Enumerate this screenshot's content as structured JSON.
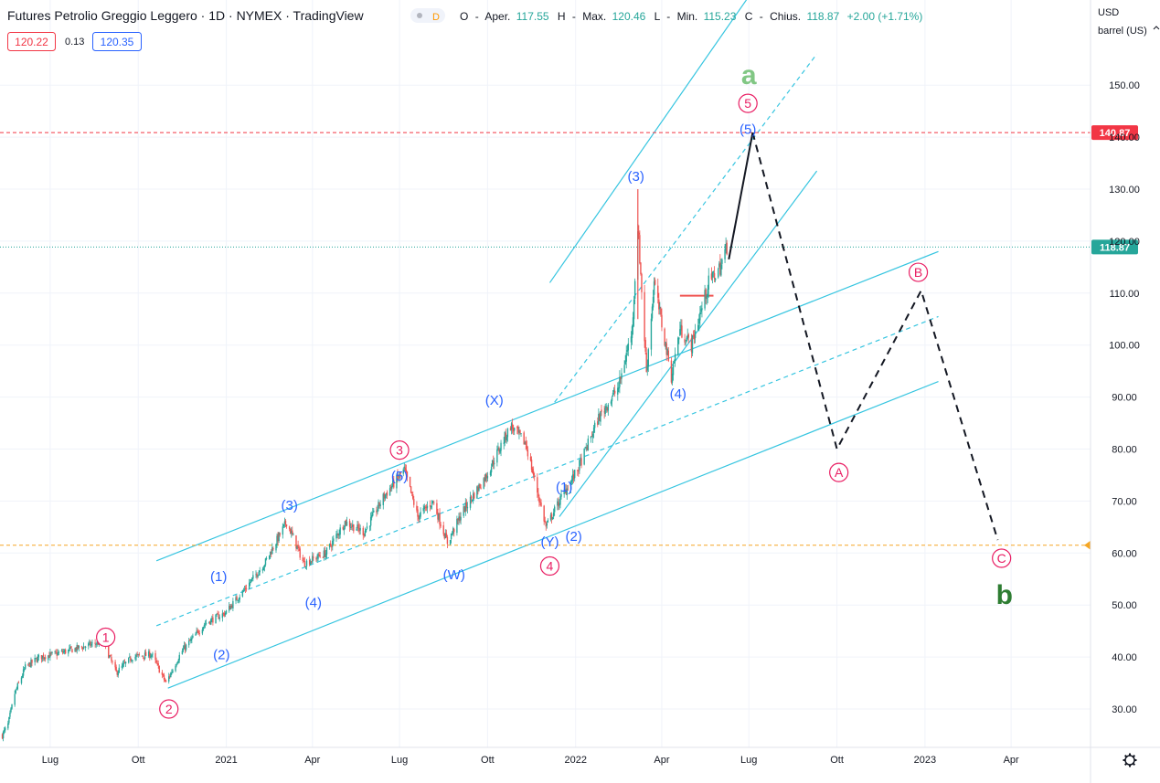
{
  "header": {
    "title": "Futures Petrolio Greggio Leggero · 1D · NYMEX · TradingView",
    "badge_d": "D",
    "o_label": "O",
    "apertura_label": "Aper.",
    "open": "117.55",
    "h_label": "H",
    "max_label": "Max.",
    "high": "120.46",
    "l_label": "L",
    "min_label": "Min.",
    "low": "115.23",
    "c_label": "C",
    "chiusura_label": "Chius.",
    "close": "118.87",
    "change": "+2.00 (+1.71%)",
    "bid": "120.22",
    "spread": "0.13",
    "ask": "120.35"
  },
  "axis": {
    "currency": "USD",
    "unit": "barrel (US)"
  },
  "colors": {
    "channel": "#36c5e0",
    "bull": "#26a69a",
    "bear": "#ef5350",
    "wave_primary": "#e91e63",
    "wave_blue": "#2962ff",
    "label_a": "#81c784",
    "label_b": "#2e7d32",
    "last_price": "#26a69a",
    "target_price": "#f23645",
    "support": "#f5a623"
  },
  "chart_data": {
    "type": "candlestick",
    "y_ticks": [
      30,
      40,
      50,
      60,
      70,
      80,
      90,
      100,
      110,
      120,
      130,
      140,
      150
    ],
    "y_tick_labels": [
      "30.00",
      "40.00",
      "50.00",
      "60.00",
      "70.00",
      "80.00",
      "90.00",
      "100.00",
      "110.00",
      "120.00",
      "130.00",
      "140.00",
      "150.00"
    ],
    "ylim": [
      22.5,
      159
    ],
    "xlim": [
      "2020-05-11",
      "2023-06-01"
    ],
    "x_ticks": [
      {
        "date": "2020-07-01",
        "label": "Lug"
      },
      {
        "date": "2020-10-01",
        "label": "Ott"
      },
      {
        "date": "2021-01-01",
        "label": "2021"
      },
      {
        "date": "2021-04-01",
        "label": "Apr"
      },
      {
        "date": "2021-07-01",
        "label": "Lug"
      },
      {
        "date": "2021-10-01",
        "label": "Ott"
      },
      {
        "date": "2022-01-01",
        "label": "2022"
      },
      {
        "date": "2022-04-01",
        "label": "Apr"
      },
      {
        "date": "2022-07-01",
        "label": "Lug"
      },
      {
        "date": "2022-10-01",
        "label": "Ott"
      },
      {
        "date": "2023-01-01",
        "label": "2023"
      },
      {
        "date": "2023-04-01",
        "label": "Apr"
      }
    ],
    "price_path": [
      [
        "2020-05-12",
        25
      ],
      [
        "2020-05-18",
        27
      ],
      [
        "2020-05-25",
        33
      ],
      [
        "2020-06-05",
        38
      ],
      [
        "2020-06-20",
        40
      ],
      [
        "2020-07-05",
        40.5
      ],
      [
        "2020-08-05",
        42
      ],
      [
        "2020-08-25",
        43
      ],
      [
        "2020-09-08",
        37
      ],
      [
        "2020-09-25",
        40
      ],
      [
        "2020-10-15",
        40.5
      ],
      [
        "2020-10-30",
        35
      ],
      [
        "2020-11-15",
        41
      ],
      [
        "2020-12-10",
        46.5
      ],
      [
        "2020-12-31",
        48.5
      ],
      [
        "2021-01-20",
        53
      ],
      [
        "2021-02-10",
        58
      ],
      [
        "2021-03-05",
        66
      ],
      [
        "2021-03-23",
        58
      ],
      [
        "2021-04-15",
        60
      ],
      [
        "2021-05-05",
        66
      ],
      [
        "2021-05-25",
        64
      ],
      [
        "2021-06-15",
        71
      ],
      [
        "2021-07-06",
        76
      ],
      [
        "2021-07-20",
        67
      ],
      [
        "2021-08-05",
        70
      ],
      [
        "2021-08-20",
        62
      ],
      [
        "2021-09-05",
        68
      ],
      [
        "2021-09-30",
        75
      ],
      [
        "2021-10-25",
        84.5
      ],
      [
        "2021-11-10",
        81
      ],
      [
        "2021-12-01",
        65
      ],
      [
        "2021-12-15",
        70
      ],
      [
        "2022-01-03",
        76
      ],
      [
        "2022-01-25",
        86
      ],
      [
        "2022-02-15",
        92
      ],
      [
        "2022-03-01",
        103
      ],
      [
        "2022-03-07",
        123
      ],
      [
        "2022-03-16",
        95
      ],
      [
        "2022-03-24",
        112
      ],
      [
        "2022-04-11",
        94
      ],
      [
        "2022-04-20",
        103
      ],
      [
        "2022-05-02",
        100
      ],
      [
        "2022-05-20",
        112
      ],
      [
        "2022-06-01",
        115
      ],
      [
        "2022-06-08",
        118.87
      ]
    ],
    "current_price": 118.87,
    "target_price": 140.87,
    "support_price": 61.5,
    "wave_a_high": 130,
    "wave_labels": [
      {
        "text": "1",
        "style": "circle-pink",
        "date": "2020-08-28",
        "price": 43.8
      },
      {
        "text": "2",
        "style": "circle-pink",
        "date": "2020-11-02",
        "price": 30.0
      },
      {
        "text": "3",
        "style": "circle-pink",
        "date": "2021-07-01",
        "price": 79.8
      },
      {
        "text": "4",
        "style": "circle-pink",
        "date": "2021-12-05",
        "price": 57.5
      },
      {
        "text": "5",
        "style": "circle-pink",
        "date": "2022-06-30",
        "price": 146.5
      },
      {
        "text": "(1)",
        "style": "paren-blue",
        "date": "2020-12-24",
        "price": 55.5
      },
      {
        "text": "(2)",
        "style": "paren-blue",
        "date": "2020-12-27",
        "price": 40.5
      },
      {
        "text": "(3)",
        "style": "paren-blue",
        "date": "2021-03-08",
        "price": 69.2
      },
      {
        "text": "(4)",
        "style": "paren-blue",
        "date": "2021-04-02",
        "price": 50.5
      },
      {
        "text": "(5)",
        "style": "paren-blue",
        "date": "2021-07-01",
        "price": 74.8
      },
      {
        "text": "(W)",
        "style": "paren-blue",
        "date": "2021-08-27",
        "price": 55.8
      },
      {
        "text": "(X)",
        "style": "paren-blue",
        "date": "2021-10-08",
        "price": 89.4
      },
      {
        "text": "(Y)",
        "style": "paren-blue",
        "date": "2021-12-05",
        "price": 62.2
      },
      {
        "text": "(1)",
        "style": "paren-blue",
        "date": "2021-12-20",
        "price": 72.7
      },
      {
        "text": "(2)",
        "style": "paren-blue",
        "date": "2021-12-30",
        "price": 63.2
      },
      {
        "text": "(3)",
        "style": "paren-blue",
        "date": "2022-03-05",
        "price": 132.5
      },
      {
        "text": "(4)",
        "style": "paren-blue",
        "date": "2022-04-18",
        "price": 90.6
      },
      {
        "text": "(5)",
        "style": "paren-blue",
        "date": "2022-06-30",
        "price": 141.5
      },
      {
        "text": "A",
        "style": "circle-pink",
        "date": "2022-10-03",
        "price": 75.5
      },
      {
        "text": "B",
        "style": "circle-pink",
        "date": "2022-12-25",
        "price": 114.0
      },
      {
        "text": "C",
        "style": "circle-pink",
        "date": "2023-03-22",
        "price": 59.0
      },
      {
        "text": "a",
        "style": "big-lightgreen",
        "date": "2022-07-01",
        "price": 152.0
      },
      {
        "text": "b",
        "style": "big-darkgreen",
        "date": "2023-03-25",
        "price": 52.0
      }
    ],
    "projection": {
      "solid": [
        [
          "2022-06-10",
          116.5
        ],
        [
          "2022-07-05",
          140.87
        ]
      ],
      "dashed": [
        [
          "2022-07-05",
          140.87
        ],
        [
          "2022-10-01",
          80
        ],
        [
          "2022-12-28",
          110.5
        ],
        [
          "2023-03-18",
          62.5
        ]
      ]
    },
    "channels": [
      {
        "style": "solid",
        "points": [
          [
            "2020-11-01",
            34
          ],
          [
            "2023-01-15",
            93
          ]
        ]
      },
      {
        "style": "solid",
        "points": [
          [
            "2020-10-20",
            58.5
          ],
          [
            "2023-01-15",
            118
          ]
        ]
      },
      {
        "style": "dashed",
        "points": [
          [
            "2020-10-20",
            46
          ],
          [
            "2023-01-15",
            105.5
          ]
        ]
      },
      {
        "style": "solid",
        "points": [
          [
            "2021-12-15",
            67
          ],
          [
            "2022-09-10",
            133.5
          ]
        ]
      },
      {
        "style": "solid",
        "points": [
          [
            "2021-12-05",
            112
          ],
          [
            "2022-07-12",
            170
          ]
        ]
      },
      {
        "style": "dashed",
        "points": [
          [
            "2021-12-10",
            89
          ],
          [
            "2022-09-10",
            156
          ]
        ]
      }
    ],
    "horizontal_segments": [
      {
        "color": "#ef5350",
        "price": 109.5,
        "from": "2022-04-20",
        "to": "2022-05-25"
      }
    ]
  }
}
